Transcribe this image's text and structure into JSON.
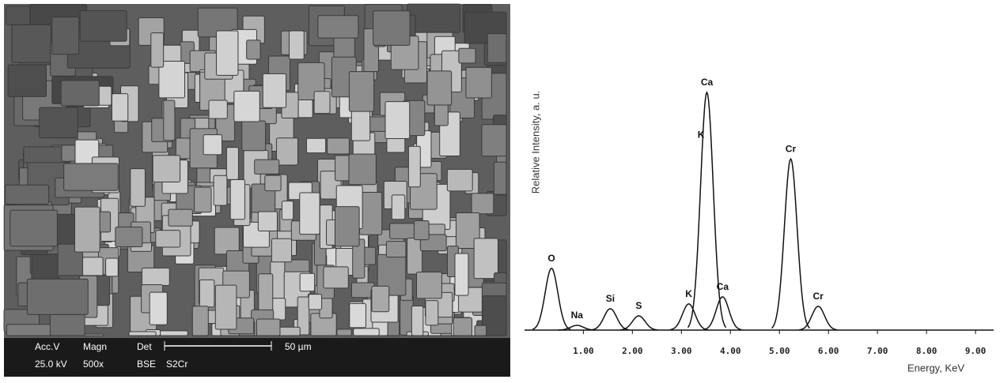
{
  "sem_image": {
    "labels": {
      "acc_v": "Acc.V",
      "magn": "Magn",
      "det": "Det",
      "scale": "50 µm",
      "kv": "25.0 kV",
      "mag": "500x",
      "mode": "BSE",
      "sample": "S2Cr"
    }
  },
  "chart_data": {
    "type": "peaks",
    "x_label": "Energy, KeV",
    "y_label": "Relative Intensity, a. u.",
    "xlim": [
      -0.2,
      9.37
    ],
    "ylim": [
      0,
      100
    ],
    "xticks": [
      {
        "value": 1,
        "label": "1.00"
      },
      {
        "value": 2,
        "label": "2.00"
      },
      {
        "value": 3,
        "label": "3.00"
      },
      {
        "value": 4,
        "label": "4.00"
      },
      {
        "value": 5,
        "label": "5.00"
      },
      {
        "value": 6,
        "label": "6.00"
      },
      {
        "value": 7,
        "label": "7.00"
      },
      {
        "value": 8,
        "label": "8.00"
      },
      {
        "value": 9,
        "label": "9.00"
      }
    ],
    "color": "#111111",
    "peaks": [
      {
        "label": "O",
        "x": 0.35,
        "y": 26
      },
      {
        "label": "Na",
        "x": 0.87,
        "y": 2
      },
      {
        "label": "Si",
        "x": 1.55,
        "y": 9
      },
      {
        "label": "S",
        "x": 2.13,
        "y": 6
      },
      {
        "label": "K",
        "x": 3.15,
        "y": 11
      },
      {
        "label": "Ca",
        "x": 3.52,
        "y": 100
      },
      {
        "label": "Ca",
        "x": 3.84,
        "y": 14
      },
      {
        "label": "Cr",
        "x": 5.23,
        "y": 72
      },
      {
        "label": "Cr",
        "x": 5.79,
        "y": 10
      }
    ],
    "annotations": [
      {
        "text": "K",
        "x": 3.4,
        "y": 82
      }
    ]
  }
}
